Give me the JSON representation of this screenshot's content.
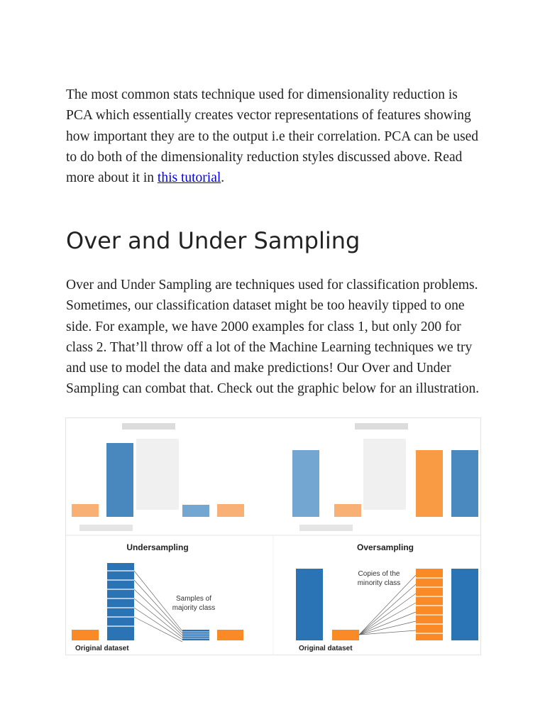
{
  "intro": {
    "text": "The most common stats technique used for dimensionality reduction is PCA which essentially creates vector representations of features showing how important they are to the output i.e their correlation. PCA can be used to do both of the dimensionality reduction styles discussed above. Read more about it in ",
    "link": "this tutorial",
    "end": "."
  },
  "heading": "Over and Under Sampling",
  "body": "Over and Under Sampling are techniques used for classification problems. Sometimes, our classification dataset might be too heavily tipped to one side. For example, we have 2000 examples for class 1, but only 200 for class 2. That’ll throw off a lot of the Machine Learning techniques we try and use to model the data and make predictions! Our Over and Under Sampling can combat that. Check out the graphic below for an illustration.",
  "figure": {
    "undersampling": {
      "title": "Undersampling",
      "note": [
        "Samples of",
        "majority class"
      ],
      "caption": "Original dataset"
    },
    "oversampling": {
      "title": "Oversampling",
      "note": [
        "Copies of the",
        "minority class"
      ],
      "caption": "Original dataset"
    }
  }
}
